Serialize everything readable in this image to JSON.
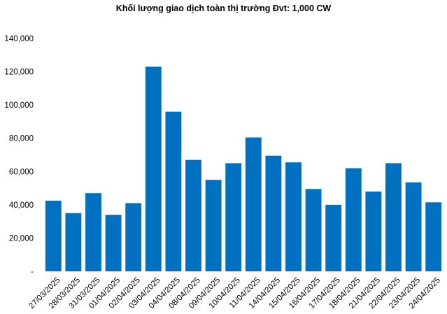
{
  "chart_data": {
    "type": "bar",
    "title": "Khối lượng giao dịch toàn thị trường Đvt: 1,000 CW",
    "xlabel": "",
    "ylabel": "",
    "categories": [
      "27/03/2025",
      "28/03/2025",
      "31/03/2025",
      "01/04/2025",
      "02/04/2025",
      "03/04/2025",
      "04/04/2025",
      "08/04/2025",
      "09/04/2025",
      "10/04/2025",
      "11/04/2025",
      "14/04/2025",
      "15/04/2025",
      "16/04/2025",
      "17/04/2025",
      "18/04/2025",
      "21/04/2025",
      "22/04/2025",
      "23/04/2025",
      "24/04/2025"
    ],
    "values": [
      42500,
      35000,
      47000,
      34000,
      41000,
      123000,
      96000,
      67000,
      55000,
      65000,
      80500,
      69500,
      65500,
      49500,
      40000,
      62000,
      48000,
      65000,
      53500,
      41500
    ],
    "ylim": [
      0,
      140000
    ],
    "y_ticks": [
      0,
      20000,
      40000,
      60000,
      80000,
      100000,
      120000,
      140000
    ],
    "y_tick_labels": [
      "-",
      "20,000",
      "40,000",
      "60,000",
      "80,000",
      "100,000",
      "120,000",
      "140,000"
    ],
    "bar_color": "#0070C0",
    "grid": false,
    "legend": "none"
  }
}
